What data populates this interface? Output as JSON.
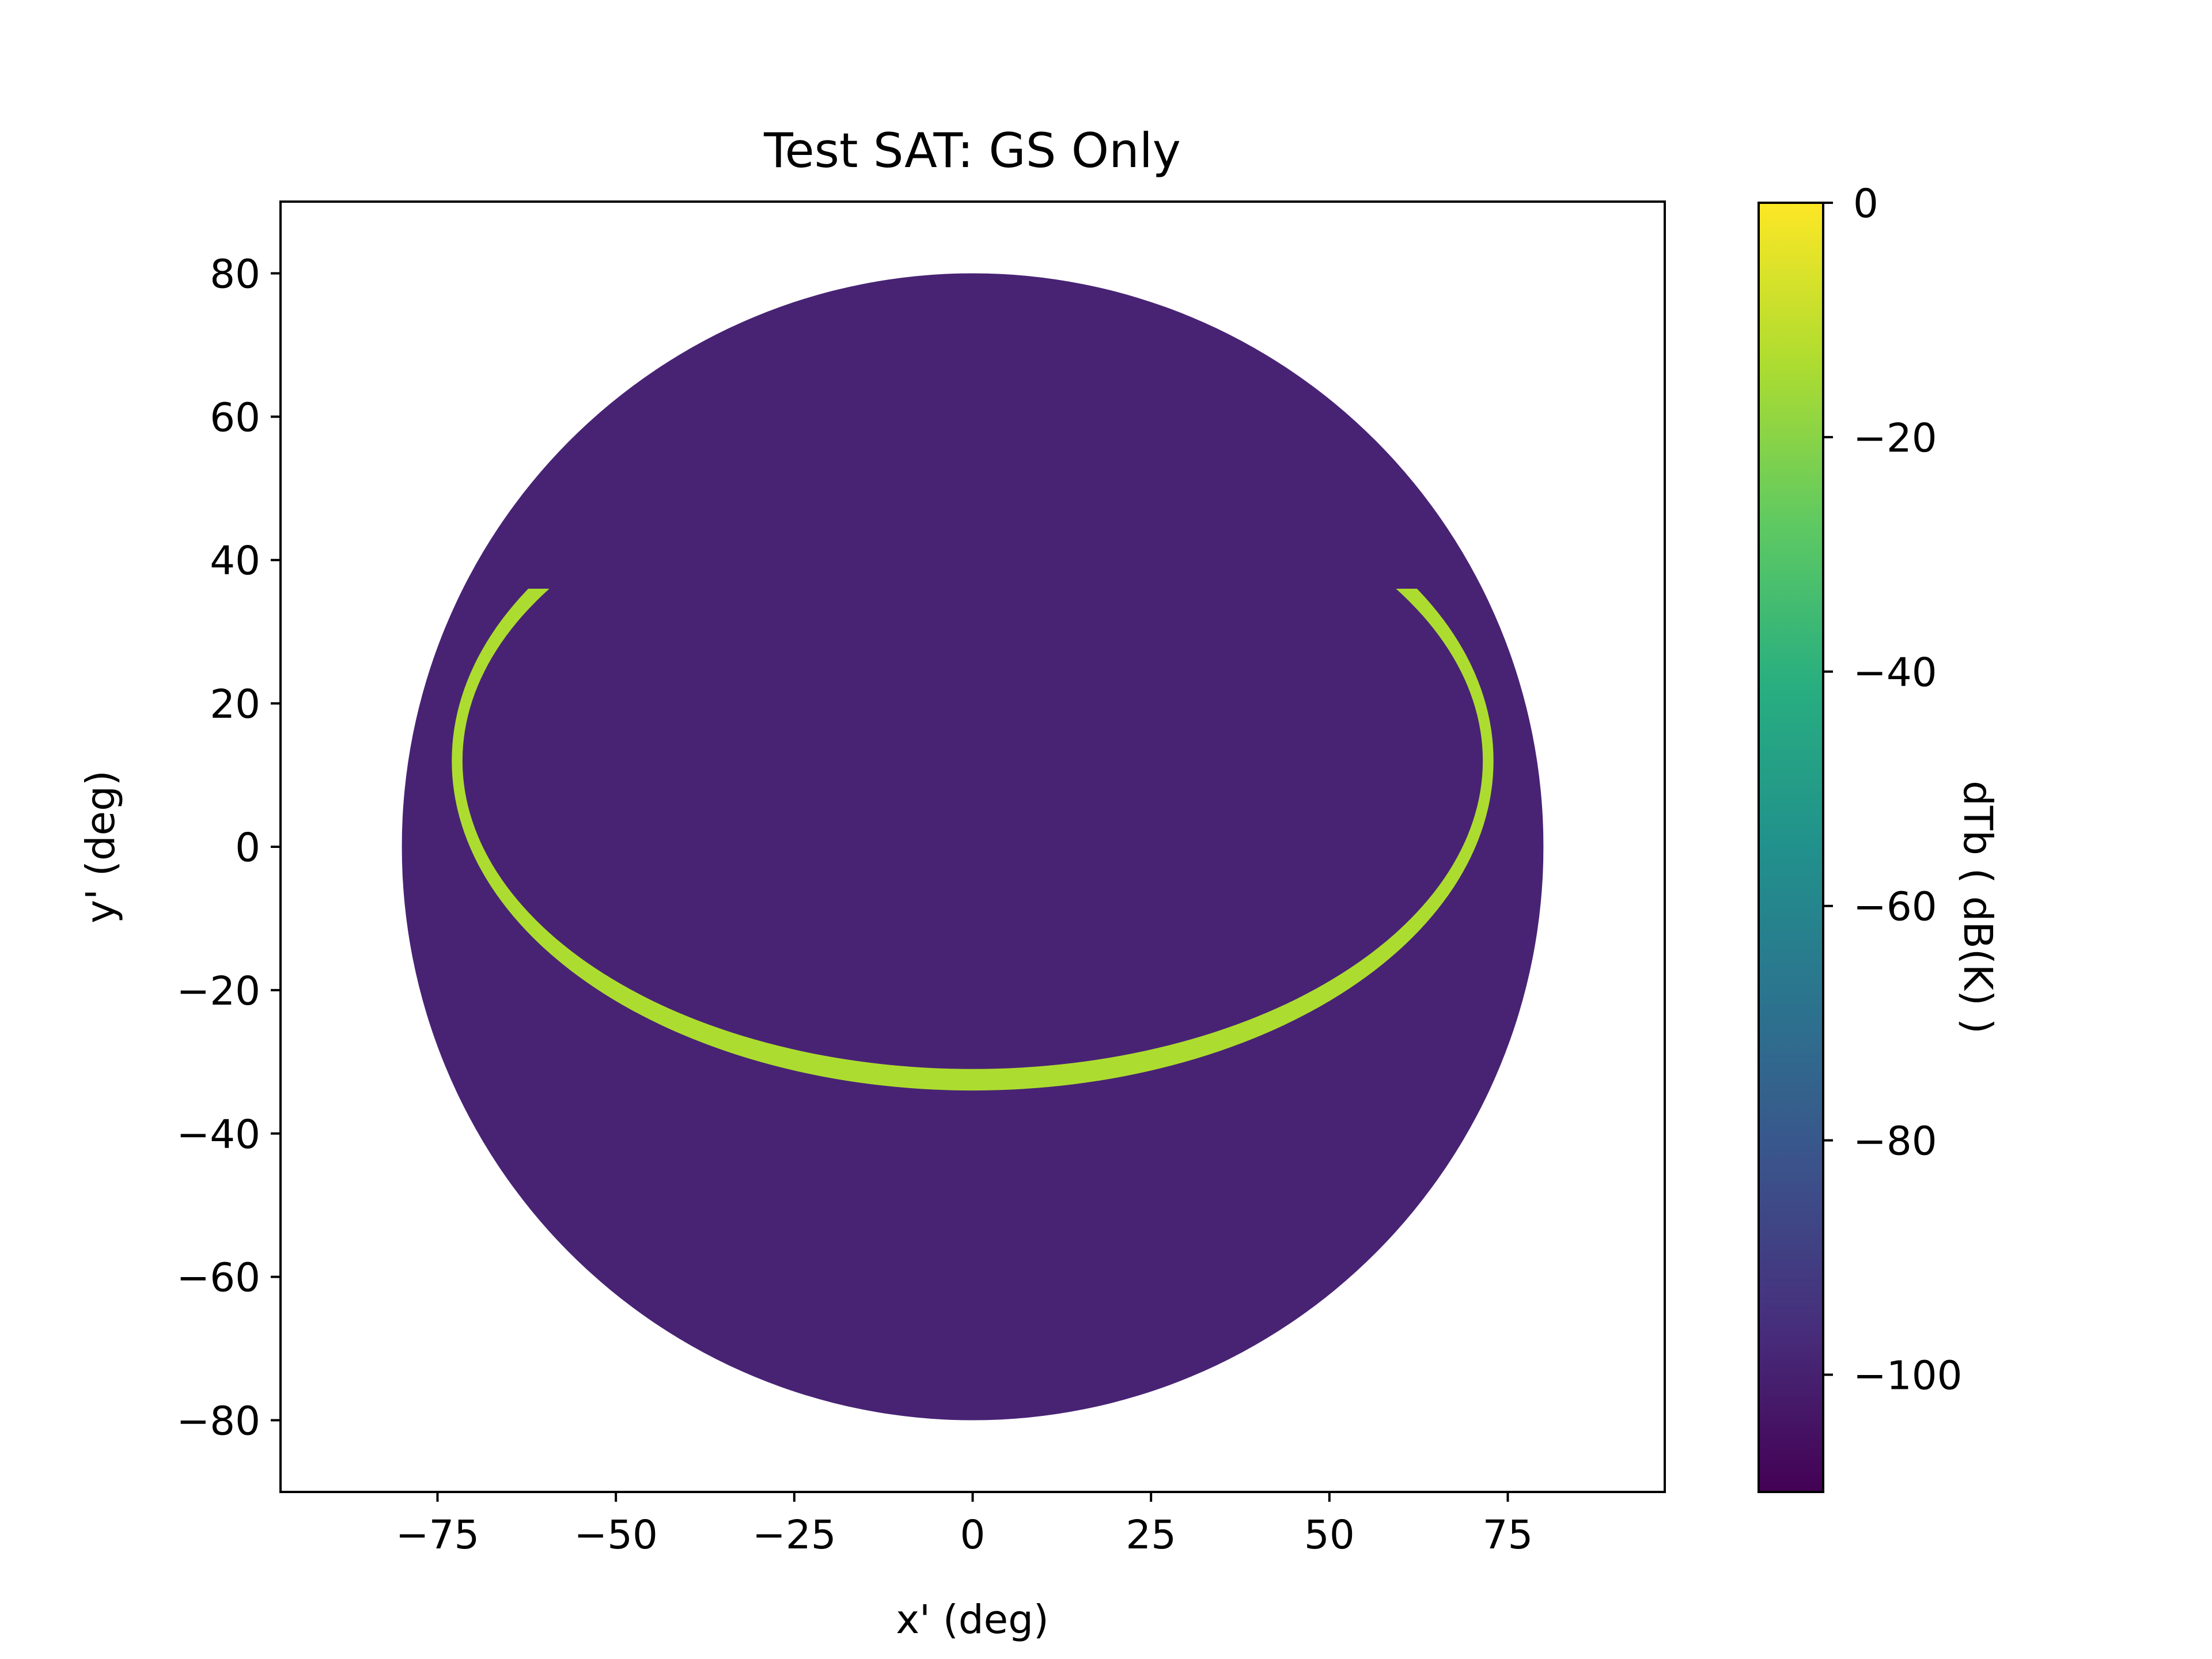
{
  "chart_data": {
    "type": "heatmap",
    "title": "Test SAT: GS Only",
    "xlabel": "x' (deg)",
    "ylabel": "y' (deg)",
    "xlim": [
      -97,
      97
    ],
    "ylim": [
      -90,
      90
    ],
    "xticks": [
      -75,
      -50,
      -25,
      0,
      25,
      50,
      75
    ],
    "yticks": [
      -80,
      -60,
      -40,
      -20,
      0,
      20,
      40,
      60,
      80
    ],
    "grid": false,
    "colormap": "viridis",
    "colorbar": {
      "label": "dTb ( dB(K) )",
      "range": [
        -110,
        0
      ],
      "ticks": [
        0,
        -20,
        -40,
        -60,
        -80,
        -100
      ]
    },
    "regions": [
      {
        "name": "disk",
        "shape": "circle",
        "center": [
          0,
          0
        ],
        "radius": 80,
        "clip_x": [
          -80,
          80
        ],
        "value": -105,
        "color": "#482374"
      },
      {
        "name": "ring",
        "shape": "ellipse-band",
        "center": [
          0,
          12
        ],
        "semi_axes": [
          73,
          46
        ],
        "inner_semi_axes": [
          71.5,
          43
        ],
        "visible_below_y": 36,
        "value": -12,
        "color": "#addc30"
      }
    ]
  }
}
